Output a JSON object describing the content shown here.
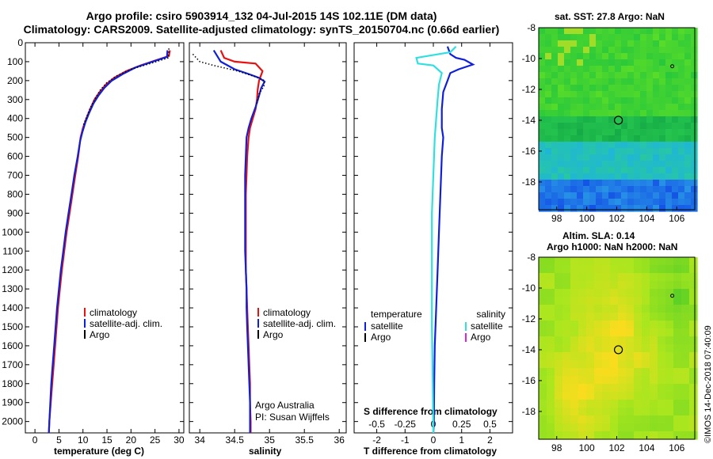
{
  "header": {
    "line1": "Argo profile: csiro 5903914_132 04-Jul-2015 14S 102.11E (DM data)",
    "line2": "Climatology: CARS2009. Satellite-adjusted climatology: synTS_20150704.nc (0.66d earlier)"
  },
  "colors": {
    "climatology": "#e81010",
    "satellite": "#1020d8",
    "argo": "#000000",
    "sat_salinity": "#30e0e0",
    "argo_salinity": "#e020e0"
  },
  "stamp": "©IMOS 14-Dec-2018 07:40:09",
  "chart_data": [
    {
      "id": "temperature",
      "type": "line",
      "xlabel": "temperature (deg C)",
      "ylabel": "",
      "xlim": [
        -2,
        31
      ],
      "ylim": [
        2060,
        0
      ],
      "xticks": [
        0,
        5,
        10,
        15,
        20,
        25,
        30
      ],
      "yticks": [
        0,
        100,
        200,
        300,
        400,
        500,
        600,
        700,
        800,
        900,
        1000,
        1100,
        1200,
        1300,
        1400,
        1500,
        1600,
        1700,
        1800,
        1900,
        2000
      ],
      "legend": [
        "climatology",
        "satellite-adj. clim.",
        "Argo"
      ],
      "series": [
        {
          "name": "climatology",
          "color": "#e81010",
          "points": [
            [
              28.1,
              40
            ],
            [
              27.9,
              70
            ],
            [
              25.5,
              90
            ],
            [
              22,
              120
            ],
            [
              19,
              150
            ],
            [
              16.5,
              185
            ],
            [
              14.8,
              220
            ],
            [
              13.5,
              260
            ],
            [
              12.4,
              300
            ],
            [
              11.5,
              350
            ],
            [
              10.7,
              400
            ],
            [
              10.0,
              450
            ],
            [
              9.5,
              500
            ],
            [
              9.0,
              600
            ],
            [
              8.4,
              700
            ],
            [
              7.8,
              800
            ],
            [
              7.2,
              900
            ],
            [
              6.6,
              1000
            ],
            [
              6.1,
              1100
            ],
            [
              5.6,
              1200
            ],
            [
              5.2,
              1300
            ],
            [
              4.8,
              1400
            ],
            [
              4.5,
              1500
            ],
            [
              4.2,
              1600
            ],
            [
              3.9,
              1700
            ],
            [
              3.6,
              1800
            ],
            [
              3.3,
              1900
            ],
            [
              3.0,
              2000
            ],
            [
              2.9,
              2060
            ]
          ]
        },
        {
          "name": "satellite-adj. clim.",
          "color": "#1020d8",
          "points": [
            [
              27.6,
              40
            ],
            [
              27.5,
              75
            ],
            [
              24.5,
              100
            ],
            [
              21,
              130
            ],
            [
              18.3,
              165
            ],
            [
              16,
              200
            ],
            [
              14.4,
              240
            ],
            [
              13.2,
              280
            ],
            [
              12.2,
              320
            ],
            [
              11.3,
              370
            ],
            [
              10.5,
              420
            ],
            [
              9.9,
              470
            ],
            [
              9.4,
              520
            ],
            [
              8.9,
              600
            ],
            [
              8.2,
              700
            ],
            [
              7.6,
              800
            ],
            [
              7.0,
              900
            ],
            [
              6.4,
              1000
            ],
            [
              5.9,
              1100
            ],
            [
              5.4,
              1200
            ],
            [
              5.0,
              1300
            ],
            [
              4.6,
              1400
            ],
            [
              4.3,
              1500
            ],
            [
              4.0,
              1600
            ],
            [
              3.7,
              1700
            ],
            [
              3.4,
              1800
            ],
            [
              3.2,
              1900
            ],
            [
              3.0,
              2000
            ],
            [
              2.9,
              2060
            ]
          ]
        },
        {
          "name": "Argo",
          "color": "#000000",
          "dotted": true,
          "points": [
            [
              27.9,
              30
            ],
            [
              27.8,
              80
            ],
            [
              24,
              110
            ],
            [
              20,
              140
            ],
            [
              17,
              175
            ],
            [
              15,
              210
            ],
            [
              13.6,
              250
            ],
            [
              12.5,
              295
            ],
            [
              11.5,
              345
            ],
            [
              10.7,
              395
            ],
            [
              10.0,
              440
            ]
          ]
        }
      ]
    },
    {
      "id": "salinity",
      "type": "line",
      "xlabel": "salinity",
      "ylabel": "",
      "xlim": [
        33.85,
        36.1
      ],
      "ylim": [
        2060,
        0
      ],
      "xticks": [
        34,
        34.5,
        35,
        35.5,
        36
      ],
      "legend": [
        "climatology",
        "satellite-adj. clim.",
        "Argo"
      ],
      "annotations": [
        "Argo Australia",
        "PI: Susan Wijffels"
      ],
      "series": [
        {
          "name": "climatology",
          "color": "#e81010",
          "points": [
            [
              34.3,
              40
            ],
            [
              34.35,
              80
            ],
            [
              34.5,
              100
            ],
            [
              34.8,
              110
            ],
            [
              34.9,
              150
            ],
            [
              34.85,
              200
            ],
            [
              34.83,
              250
            ],
            [
              34.82,
              300
            ],
            [
              34.8,
              350
            ],
            [
              34.76,
              400
            ],
            [
              34.72,
              450
            ],
            [
              34.7,
              500
            ],
            [
              34.68,
              600
            ],
            [
              34.67,
              700
            ],
            [
              34.66,
              800
            ],
            [
              34.66,
              900
            ],
            [
              34.66,
              1000
            ],
            [
              34.66,
              1100
            ],
            [
              34.66,
              1200
            ],
            [
              34.67,
              1300
            ],
            [
              34.68,
              1400
            ],
            [
              34.69,
              1500
            ],
            [
              34.7,
              1600
            ],
            [
              34.71,
              1700
            ],
            [
              34.72,
              1800
            ],
            [
              34.72,
              1900
            ],
            [
              34.73,
              2000
            ],
            [
              34.73,
              2060
            ]
          ]
        },
        {
          "name": "satellite-adj. clim.",
          "color": "#1020d8",
          "points": [
            [
              34.2,
              40
            ],
            [
              34.3,
              100
            ],
            [
              34.5,
              140
            ],
            [
              34.7,
              165
            ],
            [
              34.85,
              185
            ],
            [
              34.93,
              205
            ],
            [
              34.88,
              240
            ],
            [
              34.85,
              280
            ],
            [
              34.8,
              340
            ],
            [
              34.74,
              400
            ],
            [
              34.7,
              450
            ],
            [
              34.67,
              500
            ],
            [
              34.66,
              600
            ],
            [
              34.65,
              700
            ],
            [
              34.65,
              800
            ],
            [
              34.65,
              900
            ],
            [
              34.65,
              1000
            ],
            [
              34.65,
              1100
            ],
            [
              34.66,
              1200
            ],
            [
              34.67,
              1300
            ],
            [
              34.67,
              1400
            ],
            [
              34.68,
              1500
            ],
            [
              34.69,
              1600
            ],
            [
              34.7,
              1700
            ],
            [
              34.71,
              1800
            ],
            [
              34.72,
              1900
            ],
            [
              34.72,
              2000
            ],
            [
              34.72,
              2060
            ]
          ]
        },
        {
          "name": "Argo",
          "color": "#000000",
          "dotted": true,
          "points": [
            [
              33.9,
              60
            ],
            [
              34.0,
              100
            ],
            [
              34.2,
              120
            ],
            [
              34.55,
              150
            ],
            [
              34.8,
              180
            ],
            [
              34.93,
              200
            ],
            [
              34.92,
              230
            ],
            [
              34.85,
              270
            ],
            [
              34.82,
              320
            ]
          ]
        }
      ]
    },
    {
      "id": "difference",
      "type": "line",
      "xlabel": "T difference from climatology",
      "xlabel_top": "S difference from climatology",
      "xlim": [
        -2.8,
        2.8
      ],
      "ylim": [
        2060,
        0
      ],
      "xticks": [
        -2,
        -1,
        0,
        1,
        2
      ],
      "sticks": [
        "-0.5",
        "-0.25",
        "0",
        "0.25",
        "0.5"
      ],
      "legend_left_title": "temperature",
      "legend_right_title": "salinity",
      "legend_left": [
        "satellite",
        "Argo"
      ],
      "legend_right": [
        "satellite",
        "Argo"
      ],
      "series": [
        {
          "name": "T satellite",
          "color": "#1020d8",
          "points": [
            [
              0.5,
              20
            ],
            [
              0.6,
              60
            ],
            [
              0.8,
              80
            ],
            [
              1.1,
              90
            ],
            [
              1.4,
              115
            ],
            [
              0.9,
              140
            ],
            [
              0.6,
              160
            ],
            [
              0.5,
              200
            ],
            [
              0.35,
              260
            ],
            [
              0.3,
              350
            ],
            [
              0.3,
              450
            ],
            [
              0.35,
              500
            ],
            [
              0.3,
              600
            ],
            [
              0.25,
              800
            ],
            [
              0.2,
              1000
            ],
            [
              0.15,
              1200
            ],
            [
              0.1,
              1400
            ],
            [
              0.05,
              1600
            ],
            [
              0.03,
              1800
            ],
            [
              0.02,
              2000
            ],
            [
              0.0,
              2060
            ]
          ]
        },
        {
          "name": "S satellite",
          "color": "#30e0e0",
          "points": [
            [
              0.8,
              20
            ],
            [
              0.6,
              50
            ],
            [
              -0.6,
              80
            ],
            [
              -0.55,
              110
            ],
            [
              0.0,
              120
            ],
            [
              0.3,
              160
            ],
            [
              0.2,
              220
            ],
            [
              0.15,
              300
            ],
            [
              0.1,
              400
            ],
            [
              0.05,
              500
            ],
            [
              0.0,
              700
            ],
            [
              -0.05,
              900
            ],
            [
              -0.05,
              1200
            ],
            [
              -0.05,
              1500
            ],
            [
              -0.02,
              1800
            ],
            [
              0.0,
              2060
            ]
          ]
        }
      ]
    },
    {
      "id": "sst_map",
      "type": "heatmap",
      "title": "sat. SST: 27.8 Argo: NaN",
      "xticks": [
        98,
        100,
        102,
        104,
        106
      ],
      "yticks": [
        -8,
        -10,
        -12,
        -14,
        -16,
        -18
      ],
      "xlim": [
        96.8,
        107.2
      ],
      "ylim": [
        -19.8,
        -8
      ],
      "argo_position": [
        102.11,
        -14
      ],
      "other_float": [
        105.7,
        -10.5
      ]
    },
    {
      "id": "sla_map",
      "type": "heatmap",
      "title_line1": "Altim. SLA: 0.14",
      "title_line2": "Argo h1000: NaN h2000: NaN",
      "xticks": [
        98,
        100,
        102,
        104,
        106
      ],
      "yticks": [
        -8,
        -10,
        -12,
        -14,
        -16,
        -18
      ],
      "xlim": [
        96.8,
        107.2
      ],
      "ylim": [
        -19.8,
        -8
      ],
      "argo_position": [
        102.11,
        -14
      ],
      "other_float": [
        105.7,
        -10.5
      ]
    }
  ]
}
